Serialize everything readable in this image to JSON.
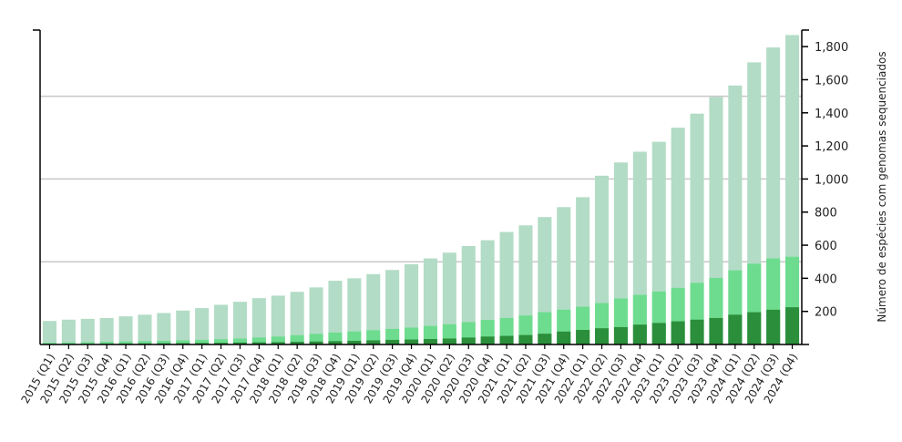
{
  "chart_data": {
    "type": "bar",
    "stacked": false,
    "overlapping": true,
    "ylabel": "Número de espécies com genomas sequenciados",
    "ylim": [
      0,
      1900
    ],
    "yticks": [
      200,
      400,
      600,
      800,
      1000,
      1200,
      1400,
      1600,
      1800
    ],
    "ytick_labels": [
      "200",
      "400",
      "600",
      "800",
      "1,000",
      "1,200",
      "1,400",
      "1,600",
      "1,800"
    ],
    "gridlines": [
      500,
      1000,
      1500
    ],
    "y_axis_position": "right",
    "categories": [
      "2015 (Q1)",
      "2015 (Q2)",
      "2015 (Q3)",
      "2015 (Q4)",
      "2016 (Q1)",
      "2016 (Q2)",
      "2016 (Q3)",
      "2016 (Q4)",
      "2017 (Q1)",
      "2017 (Q2)",
      "2017 (Q3)",
      "2017 (Q4)",
      "2018 (Q1)",
      "2018 (Q2)",
      "2018 (Q3)",
      "2018 (Q4)",
      "2019 (Q1)",
      "2019 (Q2)",
      "2019 (Q3)",
      "2019 (Q4)",
      "2020 (Q1)",
      "2020 (Q2)",
      "2020 (Q3)",
      "2020 (Q4)",
      "2021 (Q1)",
      "2021 (Q2)",
      "2021 (Q3)",
      "2021 (Q4)",
      "2022 (Q1)",
      "2022 (Q2)",
      "2022 (Q3)",
      "2022 (Q4)",
      "2023 (Q1)",
      "2023 (Q2)",
      "2023 (Q3)",
      "2023 (Q4)",
      "2024 (Q1)",
      "2024 (Q2)",
      "2024 (Q3)",
      "2024 (Q4)"
    ],
    "series": [
      {
        "color": "#b2dcc5",
        "values": [
          142,
          150,
          155,
          160,
          170,
          180,
          190,
          205,
          220,
          240,
          258,
          280,
          295,
          318,
          345,
          385,
          400,
          425,
          450,
          485,
          520,
          555,
          595,
          630,
          680,
          720,
          770,
          830,
          890,
          1020,
          1100,
          1165,
          1225,
          1310,
          1395,
          1495,
          1565,
          1705,
          1795,
          1870
        ]
      },
      {
        "color": "#6ddc8e",
        "values": [
          10,
          12,
          14,
          16,
          18,
          20,
          22,
          25,
          28,
          32,
          36,
          42,
          48,
          56,
          64,
          72,
          78,
          86,
          94,
          102,
          112,
          122,
          135,
          148,
          160,
          175,
          195,
          210,
          228,
          250,
          278,
          300,
          320,
          342,
          372,
          402,
          448,
          488,
          520,
          530
        ]
      },
      {
        "color": "#2b8e3b",
        "values": [
          2,
          3,
          3,
          4,
          5,
          6,
          7,
          8,
          9,
          10,
          12,
          13,
          14,
          16,
          18,
          20,
          22,
          25,
          28,
          30,
          33,
          36,
          42,
          48,
          52,
          57,
          65,
          78,
          88,
          98,
          105,
          120,
          130,
          140,
          150,
          160,
          180,
          195,
          210,
          225
        ]
      }
    ]
  }
}
